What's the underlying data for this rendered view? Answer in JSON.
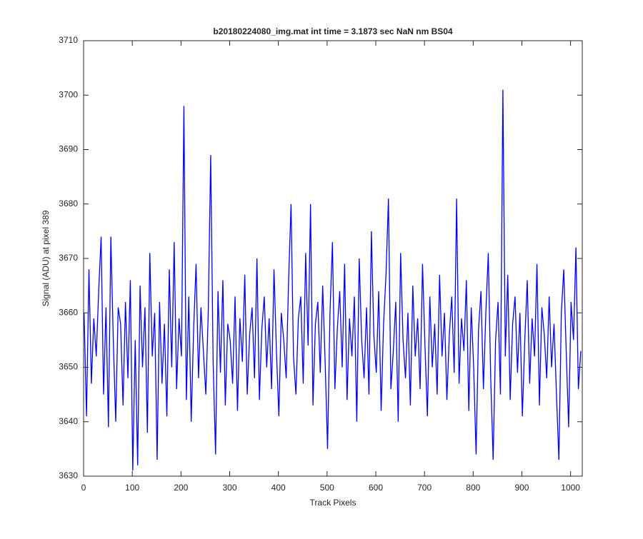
{
  "chart_data": {
    "type": "line",
    "title": "b20180224080_img.mat int time = 3.1873 sec  NaN nm BS04",
    "x_label": "Track Pixels",
    "y_label": "Signal (ADU) at pixel 389",
    "xlim": [
      0,
      1024
    ],
    "ylim": [
      3630,
      3710
    ],
    "xticks": [
      0,
      100,
      200,
      300,
      400,
      500,
      600,
      700,
      800,
      900,
      1000
    ],
    "yticks": [
      3630,
      3640,
      3650,
      3660,
      3670,
      3680,
      3690,
      3700,
      3710
    ],
    "x": [
      1,
      6,
      11,
      16,
      21,
      26,
      31,
      36,
      41,
      46,
      51,
      56,
      61,
      66,
      71,
      76,
      81,
      86,
      91,
      96,
      101,
      106,
      111,
      116,
      121,
      126,
      131,
      136,
      141,
      146,
      151,
      156,
      161,
      166,
      171,
      176,
      181,
      186,
      191,
      196,
      201,
      206,
      211,
      216,
      221,
      226,
      231,
      236,
      241,
      246,
      251,
      256,
      261,
      266,
      271,
      276,
      281,
      286,
      291,
      296,
      301,
      306,
      311,
      316,
      321,
      326,
      331,
      336,
      341,
      346,
      351,
      356,
      361,
      366,
      371,
      376,
      381,
      386,
      391,
      396,
      401,
      406,
      411,
      416,
      421,
      426,
      431,
      436,
      441,
      446,
      451,
      456,
      461,
      466,
      471,
      476,
      481,
      486,
      491,
      496,
      501,
      506,
      511,
      516,
      521,
      526,
      531,
      536,
      541,
      546,
      551,
      556,
      561,
      566,
      571,
      576,
      581,
      586,
      591,
      596,
      601,
      606,
      611,
      616,
      621,
      626,
      631,
      636,
      641,
      646,
      651,
      656,
      661,
      666,
      671,
      676,
      681,
      686,
      691,
      696,
      701,
      706,
      711,
      716,
      721,
      726,
      731,
      736,
      741,
      746,
      751,
      756,
      761,
      766,
      771,
      776,
      781,
      786,
      791,
      796,
      801,
      806,
      811,
      816,
      821,
      826,
      831,
      836,
      841,
      846,
      851,
      856,
      861,
      866,
      871,
      876,
      881,
      886,
      891,
      896,
      901,
      906,
      911,
      916,
      921,
      926,
      931,
      936,
      941,
      946,
      951,
      956,
      961,
      966,
      971,
      976,
      981,
      986,
      991,
      996,
      1001,
      1006,
      1011,
      1016,
      1021
    ],
    "series": [
      {
        "name": "signal",
        "color": "#0000ff",
        "values": [
          3660,
          3641,
          3668,
          3647,
          3659,
          3652,
          3664,
          3674,
          3645,
          3661,
          3639,
          3674,
          3655,
          3640,
          3661,
          3658,
          3643,
          3662,
          3648,
          3666,
          3631,
          3655,
          3632,
          3665,
          3650,
          3661,
          3638,
          3671,
          3652,
          3660,
          3633,
          3662,
          3647,
          3658,
          3641,
          3668,
          3650,
          3673,
          3646,
          3659,
          3652,
          3698,
          3644,
          3663,
          3640,
          3657,
          3669,
          3648,
          3661,
          3653,
          3645,
          3660,
          3689,
          3651,
          3634,
          3664,
          3649,
          3666,
          3643,
          3658,
          3655,
          3647,
          3663,
          3642,
          3659,
          3651,
          3667,
          3645,
          3656,
          3661,
          3648,
          3670,
          3644,
          3657,
          3663,
          3650,
          3659,
          3646,
          3668,
          3653,
          3641,
          3660,
          3655,
          3648,
          3666,
          3680,
          3652,
          3645,
          3659,
          3663,
          3647,
          3671,
          3654,
          3680,
          3643,
          3658,
          3662,
          3649,
          3665,
          3651,
          3635,
          3660,
          3673,
          3646,
          3657,
          3664,
          3650,
          3669,
          3644,
          3659,
          3652,
          3663,
          3640,
          3670,
          3655,
          3648,
          3661,
          3645,
          3675,
          3656,
          3649,
          3664,
          3642,
          3658,
          3667,
          3681,
          3646,
          3653,
          3662,
          3640,
          3671,
          3655,
          3648,
          3660,
          3643,
          3665,
          3652,
          3659,
          3646,
          3669,
          3654,
          3641,
          3663,
          3650,
          3658,
          3645,
          3667,
          3652,
          3660,
          3644,
          3656,
          3663,
          3649,
          3681,
          3647,
          3659,
          3653,
          3666,
          3642,
          3661,
          3650,
          3634,
          3657,
          3664,
          3646,
          3660,
          3671,
          3648,
          3633,
          3655,
          3662,
          3645,
          3701,
          3652,
          3667,
          3644,
          3658,
          3663,
          3649,
          3660,
          3641,
          3655,
          3666,
          3647,
          3659,
          3652,
          3669,
          3643,
          3661,
          3656,
          3648,
          3663,
          3650,
          3658,
          3645,
          3633,
          3660,
          3668,
          3653,
          3639,
          3662,
          3655,
          3672,
          3646,
          3653
        ]
      }
    ]
  }
}
